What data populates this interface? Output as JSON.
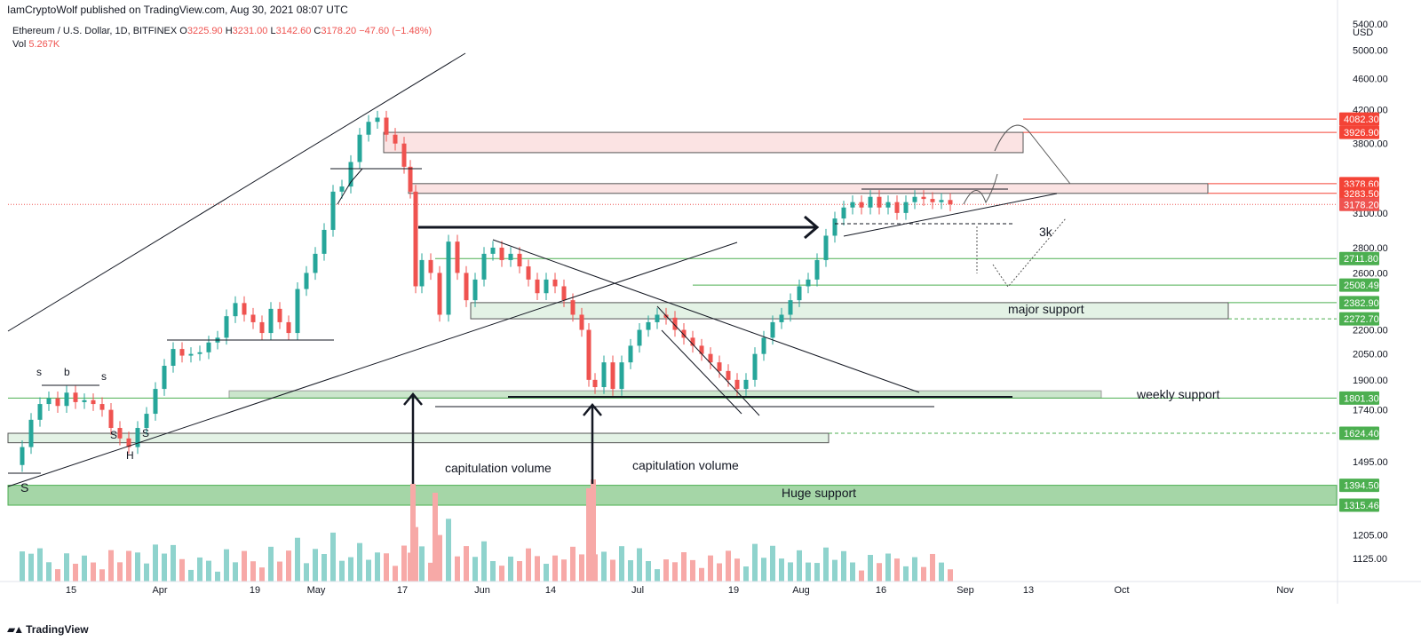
{
  "header": {
    "publisher_line": "IamCryptoWolf published on TradingView.com, Aug 30, 2021 08:07 UTC"
  },
  "legend": {
    "symbol": "Ethereum / U.S. Dollar, 1D, BITFINEX",
    "o_label": "O",
    "o_value": "3225.90",
    "h_label": "H",
    "h_value": "3231.00",
    "l_label": "L",
    "l_value": "3142.60",
    "c_label": "C",
    "c_value": "3178.20",
    "change": "−47.60 (−1.48%)",
    "vol_label": "Vol",
    "vol_value": "5.267K"
  },
  "footer": {
    "brand": "TradingView"
  },
  "colors": {
    "up": "#26a69a",
    "down": "#ef5350",
    "resistance_fill": "#fbe3e3",
    "support_fill": "#e3f2e5",
    "huge_support_fill": "#a5d6a7",
    "support_line": "#4caf50",
    "resistance_line": "#f44336"
  },
  "chart_data": {
    "type": "candlestick",
    "symbol": "Ethereum / U.S. Dollar",
    "interval": "1D",
    "exchange": "BITFINEX",
    "y_axis_unit": "USD",
    "y_scale": "log",
    "y_ticks": [
      5400,
      5000,
      4600,
      4200,
      3800,
      3100,
      2800,
      2600,
      2200,
      2050,
      1900,
      1740,
      1495,
      1205,
      1125
    ],
    "y_ticks_labels": [
      "5400.00",
      "5000.00",
      "4600.00",
      "4200.00",
      "3800.00",
      "3100.00",
      "2800.00",
      "2600.00",
      "2200.00",
      "2050.00",
      "1900.00",
      "1740.00",
      "1495.00",
      "1205.00",
      "1125.00"
    ],
    "x_ticks": [
      "15",
      "Apr",
      "19",
      "May",
      "17",
      "Jun",
      "14",
      "Jul",
      "19",
      "Aug",
      "16",
      "Sep",
      "13",
      "Oct",
      "Nov"
    ],
    "price_labels": [
      {
        "value": "4082.30",
        "kind": "resistance"
      },
      {
        "value": "3926.90",
        "kind": "resistance"
      },
      {
        "value": "3378.60",
        "kind": "resistance"
      },
      {
        "value": "3283.50",
        "kind": "resistance"
      },
      {
        "value": "3178.20",
        "kind": "last"
      },
      {
        "value": "2711.80",
        "kind": "support"
      },
      {
        "value": "2508.49",
        "kind": "support"
      },
      {
        "value": "2382.90",
        "kind": "support"
      },
      {
        "value": "2272.70",
        "kind": "support"
      },
      {
        "value": "1801.30",
        "kind": "support"
      },
      {
        "value": "1624.40",
        "kind": "support"
      },
      {
        "value": "1394.50",
        "kind": "support"
      },
      {
        "value": "1315.46",
        "kind": "support"
      }
    ],
    "last_close": 3178.2,
    "annotations": [
      "major support",
      "weekly support",
      "Huge support",
      "capitulation volume",
      "capitulation volume",
      "3k",
      "s",
      "b",
      "s",
      "S",
      "S",
      "H",
      "S"
    ]
  },
  "annotations": {
    "major_support": "major support",
    "weekly_support": "weekly support",
    "huge_support": "Huge support",
    "cap_vol_1": "capitulation volume",
    "cap_vol_2": "capitulation volume",
    "three_k": "3k",
    "hs_s1": "s",
    "hs_b": "b",
    "hs_s2": "s",
    "hs_S1": "S",
    "hs_S2": "S",
    "hs_H": "H",
    "hs_S_big": "S"
  }
}
